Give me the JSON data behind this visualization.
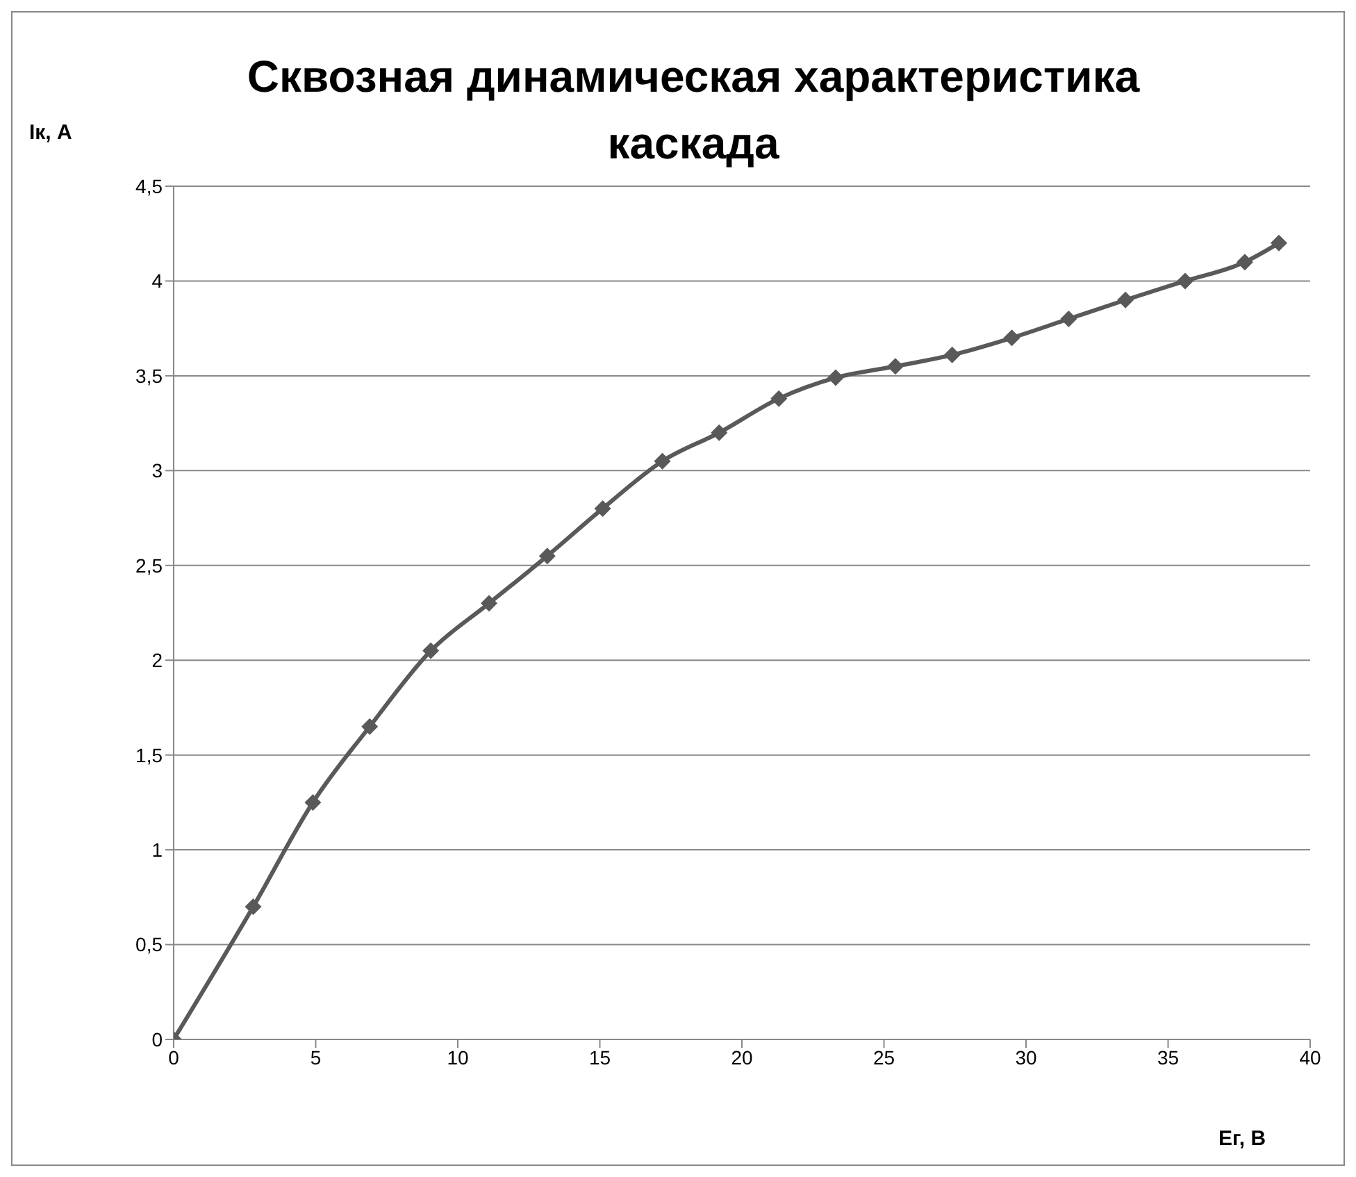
{
  "chart_data": {
    "type": "line",
    "title": "Сквозная динамическая характеристика каскада",
    "xlabel": "Eг, В",
    "ylabel": "Iк, А",
    "x": [
      0,
      2.8,
      4.9,
      6.9,
      9.05,
      11.1,
      13.15,
      15.1,
      17.2,
      19.2,
      21.3,
      23.3,
      25.4,
      27.4,
      29.5,
      31.5,
      33.5,
      35.6,
      37.7,
      38.9
    ],
    "series": [
      {
        "color": "#595959",
        "values": [
          0,
          0.7,
          1.25,
          1.65,
          2.05,
          2.3,
          2.55,
          2.8,
          3.05,
          3.2,
          3.38,
          3.49,
          3.55,
          3.61,
          3.7,
          3.8,
          3.9,
          4.0,
          4.1,
          4.2
        ]
      }
    ],
    "xlim": [
      0,
      40
    ],
    "xticks": [
      0,
      5,
      10,
      15,
      20,
      25,
      30,
      35,
      40
    ],
    "ylim": [
      0,
      4.5
    ],
    "yticks": [
      0,
      {
        "value": 0.5,
        "label": "0,5"
      },
      1,
      {
        "value": 1.5,
        "label": "1,5"
      },
      2,
      {
        "value": 2.5,
        "label": "2,5"
      },
      3,
      {
        "value": 3.5,
        "label": "3,5"
      },
      4,
      {
        "value": 4.5,
        "label": "4,5"
      }
    ],
    "grid": "y",
    "marker": "diamond",
    "line_style": "solid"
  }
}
